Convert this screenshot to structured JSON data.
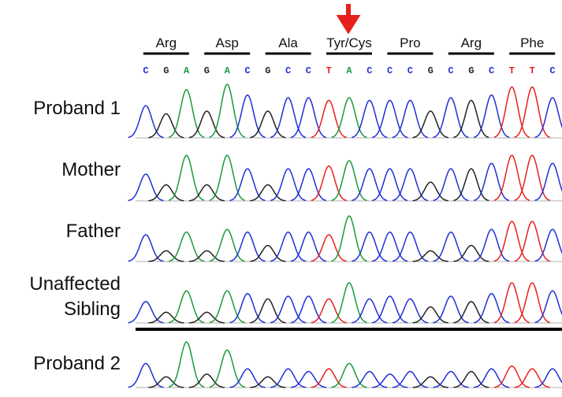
{
  "codons": [
    "Arg",
    "Asp",
    "Ala",
    "Tyr/Cys",
    "Pro",
    "Arg",
    "Phe"
  ],
  "bases": [
    "C",
    "G",
    "A",
    "G",
    "A",
    "C",
    "G",
    "C",
    "C",
    "T",
    "A",
    "C",
    "C",
    "C",
    "G",
    "C",
    "G",
    "C",
    "T",
    "T",
    "C"
  ],
  "rows": [
    {
      "label": "Proband 1",
      "peaks": [
        0.6,
        0.45,
        0.9,
        0.5,
        1.0,
        0.8,
        0.5,
        0.75,
        0.75,
        0.7,
        0.75,
        0.7,
        0.7,
        0.7,
        0.5,
        0.75,
        0.7,
        0.8,
        0.95,
        0.95,
        0.75
      ]
    },
    {
      "label": "Mother",
      "peaks": [
        0.5,
        0.3,
        0.85,
        0.3,
        0.85,
        0.6,
        0.3,
        0.6,
        0.6,
        0.65,
        0.75,
        0.6,
        0.6,
        0.6,
        0.35,
        0.6,
        0.6,
        0.7,
        0.85,
        0.85,
        0.7
      ]
    },
    {
      "label": "Father",
      "peaks": [
        0.5,
        0.2,
        0.55,
        0.2,
        0.6,
        0.55,
        0.3,
        0.55,
        0.55,
        0.5,
        0.85,
        0.55,
        0.55,
        0.55,
        0.2,
        0.55,
        0.3,
        0.6,
        0.75,
        0.75,
        0.6
      ]
    },
    {
      "label": "Unaffected Sibling",
      "peaks": [
        0.4,
        0.2,
        0.6,
        0.2,
        0.6,
        0.55,
        0.45,
        0.5,
        0.5,
        0.45,
        0.75,
        0.45,
        0.5,
        0.45,
        0.3,
        0.5,
        0.4,
        0.55,
        0.75,
        0.75,
        0.6
      ]
    },
    {
      "label": "Proband 2",
      "peaks": [
        0.45,
        0.2,
        0.85,
        0.25,
        0.7,
        0.35,
        0.2,
        0.35,
        0.3,
        0.35,
        0.45,
        0.3,
        0.25,
        0.3,
        0.2,
        0.3,
        0.3,
        0.35,
        0.4,
        0.35,
        0.35
      ]
    }
  ]
}
